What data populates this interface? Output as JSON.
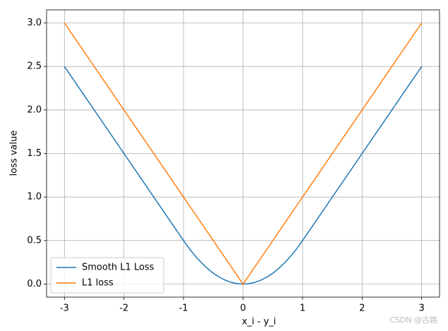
{
  "chart_data": {
    "type": "line",
    "xlabel": "x_i - y_i",
    "ylabel": "loss value",
    "x": [
      -3,
      -2,
      -1,
      -0.9,
      -0.8,
      -0.7,
      -0.6,
      -0.5,
      -0.4,
      -0.3,
      -0.2,
      -0.1,
      0,
      0.1,
      0.2,
      0.3,
      0.4,
      0.5,
      0.6,
      0.7,
      0.8,
      0.9,
      1,
      2,
      3
    ],
    "series": [
      {
        "name": "Smooth L1 Loss",
        "color": "#1f77b4",
        "values": [
          2.5,
          1.5,
          0.5,
          0.405,
          0.32,
          0.245,
          0.18,
          0.125,
          0.08,
          0.045,
          0.02,
          0.005,
          0,
          0.005,
          0.02,
          0.045,
          0.08,
          0.125,
          0.18,
          0.245,
          0.32,
          0.405,
          0.5,
          1.5,
          2.5
        ]
      },
      {
        "name": "L1 loss",
        "color": "#ff7f0e",
        "values": [
          3,
          2,
          1,
          0.9,
          0.8,
          0.7,
          0.6,
          0.5,
          0.4,
          0.3,
          0.2,
          0.1,
          0,
          0.1,
          0.2,
          0.3,
          0.4,
          0.5,
          0.6,
          0.7,
          0.8,
          0.9,
          1,
          2,
          3
        ]
      }
    ],
    "xlim": [
      -3.3,
      3.3
    ],
    "xticks": [
      -3,
      -2,
      -1,
      0,
      1,
      2,
      3
    ],
    "ylim": [
      -0.15,
      3.15
    ],
    "yticks": [
      {
        "value": 0,
        "label": "0.0"
      },
      {
        "value": 0.5,
        "label": "0.5"
      },
      {
        "value": 1,
        "label": "1.0"
      },
      {
        "value": 1.5,
        "label": "1.5"
      },
      {
        "value": 2,
        "label": "2.0"
      },
      {
        "value": 2.5,
        "label": "2.5"
      },
      {
        "value": 3,
        "label": "3.0"
      }
    ],
    "grid": true,
    "legend": "lower left",
    "watermark": "CSDN @古路"
  }
}
